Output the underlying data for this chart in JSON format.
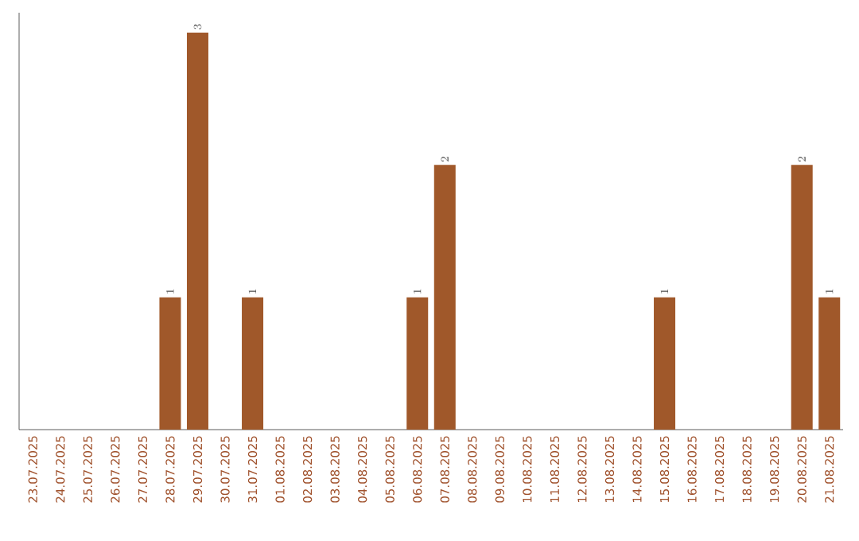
{
  "chart_data": {
    "type": "bar",
    "categories": [
      "23.07.2025",
      "24.07.2025",
      "25.07.2025",
      "26.07.2025",
      "27.07.2025",
      "28.07.2025",
      "29.07.2025",
      "30.07.2025",
      "31.07.2025",
      "01.08.2025",
      "02.08.2025",
      "03.08.2025",
      "04.08.2025",
      "05.08.2025",
      "06.08.2025",
      "07.08.2025",
      "08.08.2025",
      "09.08.2025",
      "10.08.2025",
      "11.08.2025",
      "12.08.2025",
      "13.08.2025",
      "14.08.2025",
      "15.08.2025",
      "16.08.2025",
      "17.08.2025",
      "18.08.2025",
      "19.08.2025",
      "20.08.2025",
      "21.08.2025"
    ],
    "values": [
      null,
      null,
      null,
      null,
      null,
      1,
      3,
      null,
      1,
      null,
      null,
      null,
      null,
      null,
      1,
      2,
      null,
      null,
      null,
      null,
      null,
      null,
      null,
      1,
      null,
      null,
      null,
      null,
      2,
      1
    ],
    "color": "#a0582a",
    "data_labels": true,
    "tick_labels": "x"
  }
}
